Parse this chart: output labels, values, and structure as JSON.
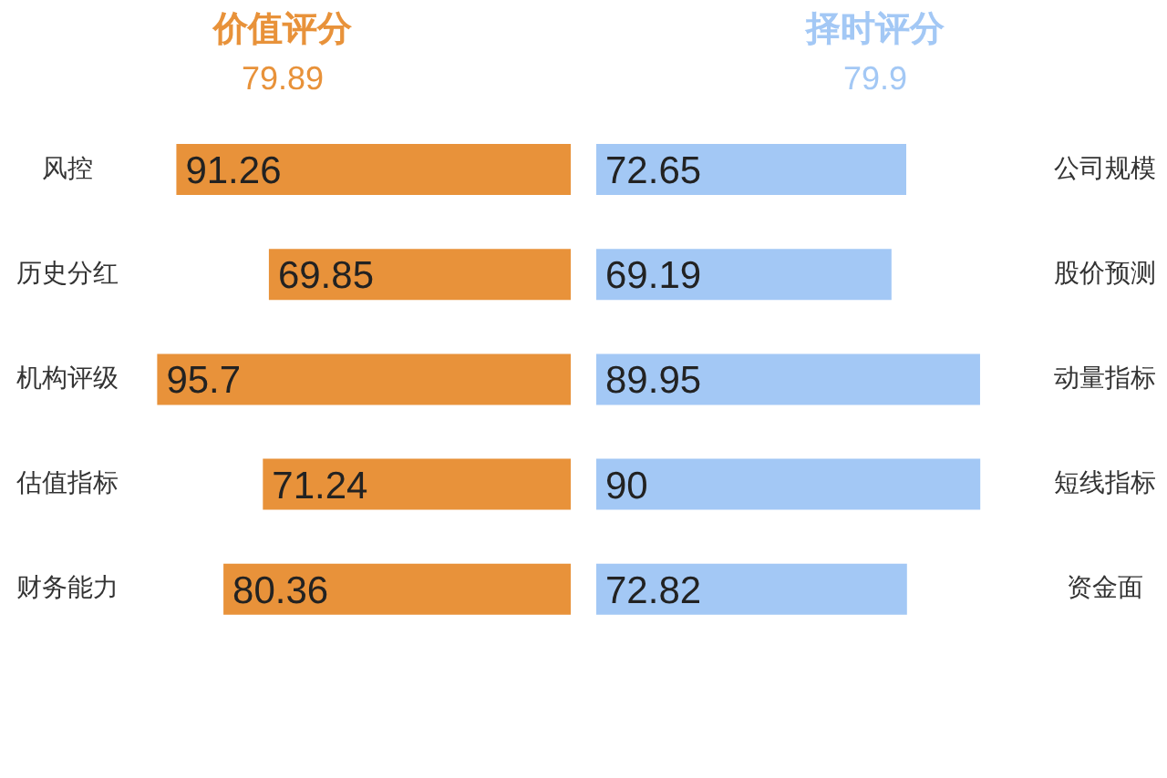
{
  "chart_data": [
    {
      "type": "bar",
      "orientation": "horizontal",
      "title": "价值评分",
      "subtitle": "79.89",
      "categories": [
        "风控",
        "历史分红",
        "机构评级",
        "估值指标",
        "财务能力"
      ],
      "values": [
        91.26,
        69.85,
        95.7,
        71.24,
        80.36
      ],
      "color": "#e8923a",
      "data_labels": true,
      "tick_labels": "y"
    },
    {
      "type": "bar",
      "orientation": "horizontal",
      "title": "择时评分",
      "subtitle": "79.9",
      "categories": [
        "公司规模",
        "股价预测",
        "动量指标",
        "短线指标",
        "资金面"
      ],
      "values": [
        72.65,
        69.19,
        89.95,
        90,
        72.82
      ],
      "color": "#a3c8f5",
      "data_labels": true,
      "tick_labels": "y"
    }
  ]
}
